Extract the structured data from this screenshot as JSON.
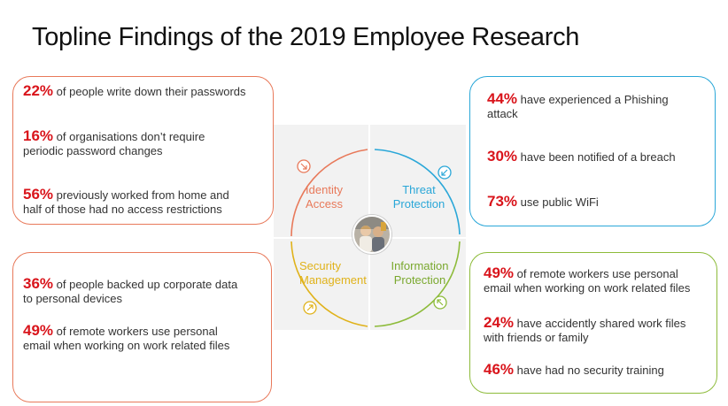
{
  "title": "Topline Findings of the 2019 Employee Research",
  "colors": {
    "identity": "#e8795a",
    "threat": "#2aa7d8",
    "security": "#e0b21a",
    "information": "#8dbb3a",
    "highlight": "#d9141b"
  },
  "quadrants": {
    "identity": [
      "Identity",
      "Access"
    ],
    "threat": [
      "Threat",
      "Protection"
    ],
    "security": [
      "Security",
      "Management"
    ],
    "information": [
      "Information",
      "Protection"
    ]
  },
  "center_icon": "people-photo-icon",
  "top_left": [
    {
      "pct": "22%",
      "text": " of people write down their passwords"
    },
    {
      "pct": "16%",
      "text": " of organisations don’t require",
      "text2": "periodic password changes"
    },
    {
      "pct": "56%",
      "text": " previously worked from home and",
      "text2": "half of those had no access restrictions"
    }
  ],
  "bottom_left": [
    {
      "pct": "36%",
      "text": " of people backed up corporate data",
      "text2": "to personal devices"
    },
    {
      "pct": "49%",
      "text": " of remote workers use personal",
      "text2": "email when working on work related files"
    }
  ],
  "top_right": [
    {
      "pct": "44%",
      "text": " have experienced a Phishing",
      "text2": "attack"
    },
    {
      "pct": "30%",
      "text": " have been notified of a breach"
    },
    {
      "pct": "73%",
      "text": " use public WiFi"
    }
  ],
  "bottom_right": [
    {
      "pct": "49%",
      "text": " of remote workers use personal",
      "text2": "email when working on work related files"
    },
    {
      "pct": "24%",
      "text": " have accidently shared work files",
      "text2": "with friends or family"
    },
    {
      "pct": "46%",
      "text": " have had no security training"
    }
  ]
}
